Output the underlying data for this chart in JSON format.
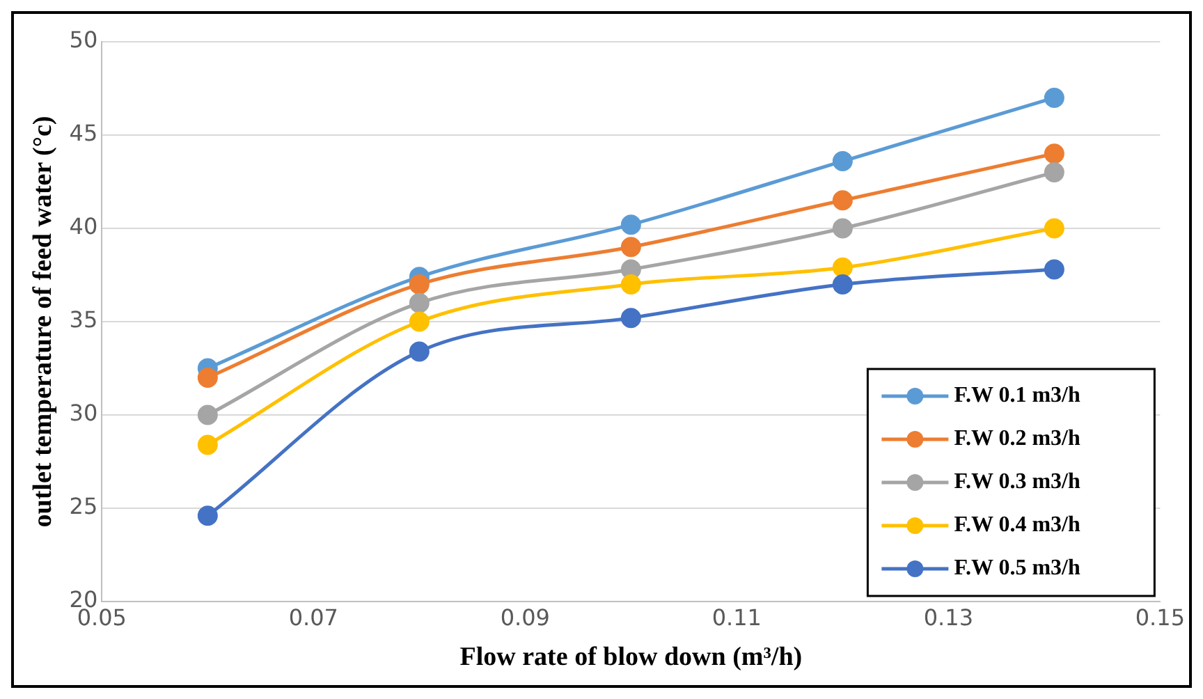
{
  "chart_data": {
    "type": "line",
    "xlabel": "Flow rate of blow down (m³/h)",
    "ylabel": "outlet temperature of feed water (°c)",
    "x": [
      0.06,
      0.08,
      0.1,
      0.12,
      0.14
    ],
    "series": [
      {
        "name": "F.W 0.1 m3/h",
        "color": "#5b9bd5",
        "values": [
          32.5,
          37.4,
          40.2,
          43.6,
          47.0
        ]
      },
      {
        "name": "F.W 0.2 m3/h",
        "color": "#ed7d31",
        "values": [
          32.0,
          37.0,
          39.0,
          41.5,
          44.0
        ]
      },
      {
        "name": "F.W 0.3 m3/h",
        "color": "#a5a5a5",
        "values": [
          30.0,
          36.0,
          37.8,
          40.0,
          43.0
        ]
      },
      {
        "name": "F.W 0.4 m3/h",
        "color": "#ffc000",
        "values": [
          28.4,
          35.0,
          37.0,
          37.9,
          40.0
        ]
      },
      {
        "name": "F.W 0.5 m3/h",
        "color": "#4472c4",
        "values": [
          24.6,
          33.4,
          35.2,
          37.0,
          37.8
        ]
      }
    ],
    "xlim": [
      0.05,
      0.15
    ],
    "xticks": [
      0.05,
      0.07,
      0.09,
      0.11,
      0.13,
      0.15
    ],
    "ylim": [
      20,
      50
    ],
    "yticks": [
      20,
      25,
      30,
      35,
      40,
      45,
      50
    ],
    "grid": "y",
    "legend": "bottom right",
    "marker": "circle",
    "line_style": "solid"
  }
}
